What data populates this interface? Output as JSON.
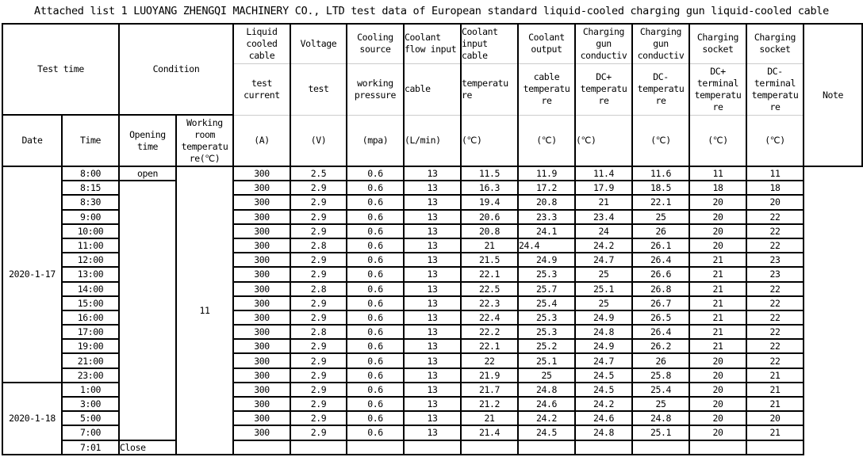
{
  "title": "Attached list 1 LUOYANG ZHENGQI MACHINERY CO., LTD test data of European standard liquid-cooled charging gun liquid-cooled cable",
  "header": {
    "test_time": "Test time",
    "condition": "Condition",
    "note": "Note",
    "date": "Date",
    "time": "Time",
    "opening_time": "Opening time",
    "working_room_temp": "Working room temperatu re(℃)",
    "columns": [
      {
        "top": "Liquid cooled cable",
        "mid": "test current",
        "unit": "(A)"
      },
      {
        "top": "Voltage",
        "mid": "test",
        "unit": "(V)"
      },
      {
        "top": "Cooling source",
        "mid": "working pressure",
        "unit": "(mpa)"
      },
      {
        "top": "Coolant flow input",
        "mid": "cable",
        "unit": "(L/min)",
        "left": true
      },
      {
        "top": "Coolant input cable",
        "mid": "temperatu re",
        "unit": "(℃)",
        "left": true
      },
      {
        "top": "Coolant output",
        "mid": "cable temperatu re",
        "unit": "(℃)"
      },
      {
        "top": "Charging gun conductiv",
        "mid": "DC+ temperatu re",
        "unit": "(℃)",
        "left_unit": true
      },
      {
        "top": "Charging gun conductiv",
        "mid": "DC- temperatu re",
        "unit": "(℃)"
      },
      {
        "top": "Charging socket",
        "mid": "DC+ terminal temperatu re",
        "unit": "(℃)"
      },
      {
        "top": "Charging socket",
        "mid": "DC- terminal temperatu re",
        "unit": "(℃)"
      }
    ]
  },
  "dates": [
    "2020-1-17",
    "2020-1-18"
  ],
  "opening": {
    "open": "open",
    "close": "Close"
  },
  "room_temp": "11",
  "rows": [
    {
      "time": "8:00",
      "v": [
        "300",
        "2.5",
        "0.6",
        "13",
        "11.5",
        "11.9",
        "11.4",
        "11.6",
        "11",
        "11"
      ]
    },
    {
      "time": "8:15",
      "v": [
        "300",
        "2.9",
        "0.6",
        "13",
        "16.3",
        "17.2",
        "17.9",
        "18.5",
        "18",
        "18"
      ]
    },
    {
      "time": "8:30",
      "v": [
        "300",
        "2.9",
        "0.6",
        "13",
        "19.4",
        "20.8",
        "21",
        "22.1",
        "20",
        "20"
      ]
    },
    {
      "time": "9:00",
      "v": [
        "300",
        "2.9",
        "0.6",
        "13",
        "20.6",
        "23.3",
        "23.4",
        "25",
        "20",
        "22"
      ]
    },
    {
      "time": "10:00",
      "v": [
        "300",
        "2.9",
        "0.6",
        "13",
        "20.8",
        "24.1",
        "24",
        "26",
        "20",
        "22"
      ]
    },
    {
      "time": "11:00",
      "v": [
        "300",
        "2.8",
        "0.6",
        "13",
        "21",
        "24.4",
        "24.2",
        "26.1",
        "20",
        "22"
      ]
    },
    {
      "time": "12:00",
      "v": [
        "300",
        "2.9",
        "0.6",
        "13",
        "21.5",
        "24.9",
        "24.7",
        "26.4",
        "21",
        "23"
      ]
    },
    {
      "time": "13:00",
      "v": [
        "300",
        "2.9",
        "0.6",
        "13",
        "22.1",
        "25.3",
        "25",
        "26.6",
        "21",
        "23"
      ]
    },
    {
      "time": "14:00",
      "v": [
        "300",
        "2.8",
        "0.6",
        "13",
        "22.5",
        "25.7",
        "25.1",
        "26.8",
        "21",
        "22"
      ]
    },
    {
      "time": "15:00",
      "v": [
        "300",
        "2.9",
        "0.6",
        "13",
        "22.3",
        "25.4",
        "25",
        "26.7",
        "21",
        "22"
      ]
    },
    {
      "time": "16:00",
      "v": [
        "300",
        "2.9",
        "0.6",
        "13",
        "22.4",
        "25.3",
        "24.9",
        "26.5",
        "21",
        "22"
      ]
    },
    {
      "time": "17:00",
      "v": [
        "300",
        "2.8",
        "0.6",
        "13",
        "22.2",
        "25.3",
        "24.8",
        "26.4",
        "21",
        "22"
      ]
    },
    {
      "time": "19:00",
      "v": [
        "300",
        "2.9",
        "0.6",
        "13",
        "22.1",
        "25.2",
        "24.9",
        "26.2",
        "21",
        "22"
      ]
    },
    {
      "time": "21:00",
      "v": [
        "300",
        "2.9",
        "0.6",
        "13",
        "22",
        "25.1",
        "24.7",
        "26",
        "20",
        "22"
      ]
    },
    {
      "time": "23:00",
      "v": [
        "300",
        "2.9",
        "0.6",
        "13",
        "21.9",
        "25",
        "24.5",
        "25.8",
        "20",
        "21"
      ]
    },
    {
      "time": "1:00",
      "v": [
        "300",
        "2.9",
        "0.6",
        "13",
        "21.7",
        "24.8",
        "24.5",
        "25.4",
        "20",
        "21"
      ]
    },
    {
      "time": "3:00",
      "v": [
        "300",
        "2.9",
        "0.6",
        "13",
        "21.2",
        "24.6",
        "24.2",
        "25",
        "20",
        "21"
      ]
    },
    {
      "time": "5:00",
      "v": [
        "300",
        "2.9",
        "0.6",
        "13",
        "21",
        "24.2",
        "24.6",
        "24.8",
        "20",
        "20"
      ]
    },
    {
      "time": "7:00",
      "v": [
        "300",
        "2.9",
        "0.6",
        "13",
        "21.4",
        "24.5",
        "24.8",
        "25.1",
        "20",
        "21"
      ]
    },
    {
      "time": "7:01",
      "v": [
        "",
        "",
        "",
        "",
        "",
        "",
        "",
        "",
        "",
        ""
      ]
    }
  ]
}
